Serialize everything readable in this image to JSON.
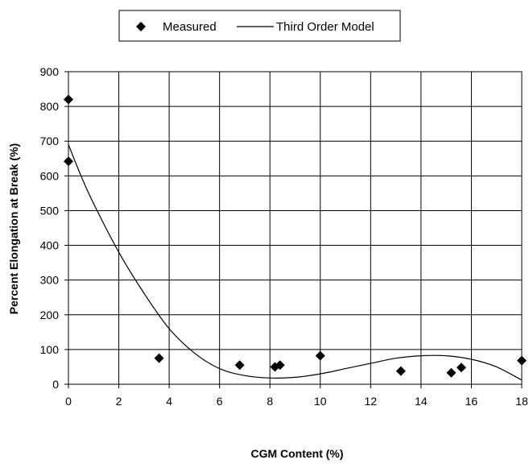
{
  "chart_data": {
    "type": "scatter",
    "title": "",
    "xlabel": "CGM Content (%)",
    "ylabel": "Percent Elongation at Break (%)",
    "xlim": [
      0,
      18
    ],
    "ylim": [
      0,
      900
    ],
    "x_ticks": [
      "0",
      "2",
      "4",
      "6",
      "8",
      "10",
      "12",
      "14",
      "16",
      "18"
    ],
    "y_ticks": [
      "0",
      "100",
      "200",
      "300",
      "400",
      "500",
      "600",
      "700",
      "800",
      "900"
    ],
    "grid": true,
    "legend_position": "top",
    "series": [
      {
        "name": "Measured",
        "kind": "scatter",
        "marker": "diamond",
        "color": "#000000",
        "points": [
          {
            "x": 0,
            "y": 820
          },
          {
            "x": 0,
            "y": 642
          },
          {
            "x": 3.6,
            "y": 75
          },
          {
            "x": 6.8,
            "y": 55
          },
          {
            "x": 8.2,
            "y": 50
          },
          {
            "x": 8.4,
            "y": 55
          },
          {
            "x": 10,
            "y": 82
          },
          {
            "x": 13.2,
            "y": 38
          },
          {
            "x": 15.2,
            "y": 33
          },
          {
            "x": 15.6,
            "y": 48
          },
          {
            "x": 18,
            "y": 68
          }
        ]
      },
      {
        "name": "Third Order Model",
        "kind": "line",
        "color": "#000000",
        "points": [
          {
            "x": 0,
            "y": 690
          },
          {
            "x": 0.5,
            "y": 600
          },
          {
            "x": 1,
            "y": 520
          },
          {
            "x": 2,
            "y": 380
          },
          {
            "x": 3,
            "y": 262
          },
          {
            "x": 4,
            "y": 160
          },
          {
            "x": 5,
            "y": 90
          },
          {
            "x": 6,
            "y": 45
          },
          {
            "x": 7,
            "y": 25
          },
          {
            "x": 8,
            "y": 18
          },
          {
            "x": 9,
            "y": 20
          },
          {
            "x": 10,
            "y": 30
          },
          {
            "x": 11,
            "y": 45
          },
          {
            "x": 12,
            "y": 60
          },
          {
            "x": 13,
            "y": 75
          },
          {
            "x": 14,
            "y": 82
          },
          {
            "x": 15,
            "y": 82
          },
          {
            "x": 16,
            "y": 72
          },
          {
            "x": 17,
            "y": 50
          },
          {
            "x": 18,
            "y": 12
          }
        ]
      }
    ]
  }
}
